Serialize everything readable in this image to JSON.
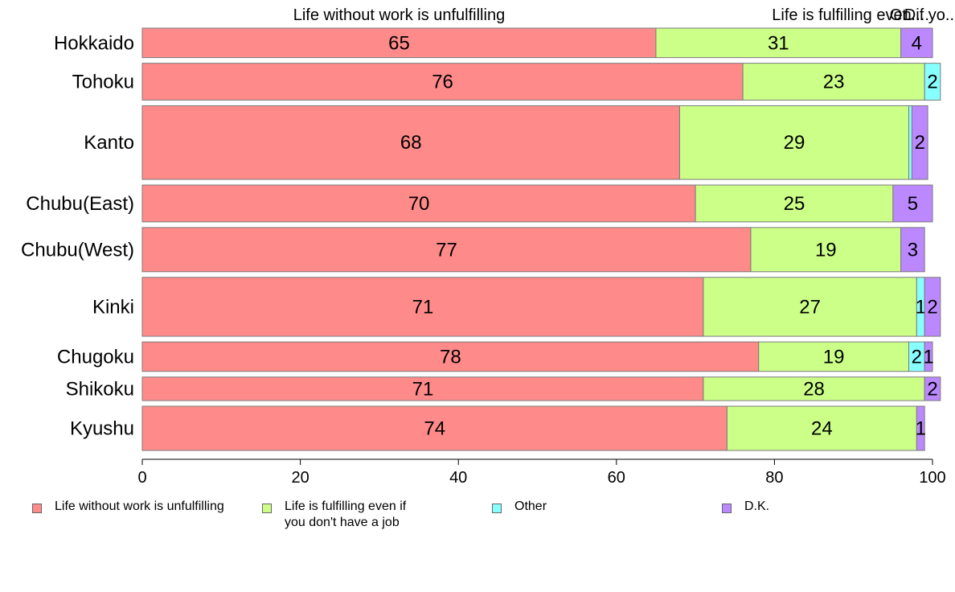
{
  "chart_data": {
    "type": "bar",
    "orientation": "horizontal",
    "stacked": true,
    "categories": [
      "Hokkaido",
      "Tohoku",
      "Kanto",
      "Chubu(East)",
      "Chubu(West)",
      "Kinki",
      "Chugoku",
      "Shikoku",
      "Kyushu"
    ],
    "series": [
      {
        "name": "Life without work is unfulfilling",
        "color": "#FF8A8A",
        "values": [
          65,
          76,
          68,
          70,
          77,
          71,
          78,
          71,
          74
        ]
      },
      {
        "name": "Life is fulfilling even if you don't have a job",
        "color": "#CCFF88",
        "values": [
          31,
          23,
          29,
          25,
          19,
          27,
          19,
          28,
          24
        ]
      },
      {
        "name": "Other",
        "color": "#88FFFF",
        "values": [
          0,
          2,
          0.4,
          0,
          0,
          1,
          2,
          0,
          0
        ]
      },
      {
        "name": "D.K.",
        "color": "#BB88FF",
        "values": [
          4,
          0,
          2,
          5,
          3,
          2,
          1,
          2,
          1
        ]
      }
    ],
    "data_labels": [
      [
        "65",
        "31",
        "",
        "4"
      ],
      [
        "76",
        "23",
        "2",
        ""
      ],
      [
        "68",
        "29",
        "",
        "2"
      ],
      [
        "70",
        "25",
        "",
        "5"
      ],
      [
        "77",
        "19",
        "",
        "3"
      ],
      [
        "71",
        "27",
        "1",
        "2"
      ],
      [
        "78",
        "19",
        "2",
        "1"
      ],
      [
        "71",
        "28",
        "",
        "2"
      ],
      [
        "74",
        "24",
        "",
        "1"
      ]
    ],
    "relative_bar_widths": [
      0.5,
      0.625,
      1.25,
      0.625,
      0.75,
      1.0,
      0.5,
      0.4,
      0.75
    ],
    "top_labels": [
      {
        "text": "Life without work is unfulfilling",
        "at": 32.5
      },
      {
        "text": "Life is fulfilling even if yo...",
        "at": 91.5
      },
      {
        "text": "Ot...",
        "at": 96.5
      },
      {
        "text": "D...",
        "at": 98.0
      }
    ],
    "xlim": [
      0,
      100
    ],
    "xticks": [
      0,
      20,
      40,
      60,
      80,
      100
    ],
    "legend_position": "bottom",
    "grid": false,
    "title": "",
    "xlabel": "",
    "ylabel": ""
  },
  "legend": {
    "items": [
      {
        "label": "Life without work is unfulfilling",
        "color": "#FF8A8A"
      },
      {
        "label": "Life is fulfilling even if\nyou don't have a job",
        "color": "#CCFF88"
      },
      {
        "label": "Other",
        "color": "#88FFFF"
      },
      {
        "label": "D.K.",
        "color": "#BB88FF"
      }
    ]
  }
}
